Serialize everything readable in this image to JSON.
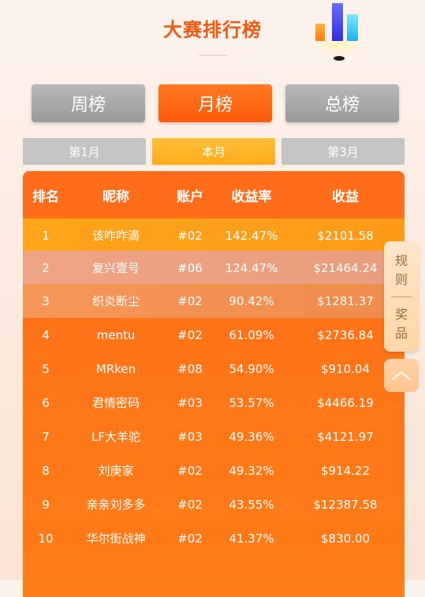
{
  "header": {
    "title": "大赛排行榜"
  },
  "tabs": [
    {
      "label": "周榜",
      "active": false
    },
    {
      "label": "月榜",
      "active": true
    },
    {
      "label": "总榜",
      "active": false
    }
  ],
  "subtabs": [
    {
      "label": "第1月",
      "active": false
    },
    {
      "label": "本月",
      "active": true
    },
    {
      "label": "第3月",
      "active": false
    }
  ],
  "table": {
    "columns": {
      "rank": "排名",
      "nickname": "昵称",
      "account": "账户",
      "rate": "收益率",
      "earnings": "收益"
    },
    "rows": [
      {
        "rank": "1",
        "nickname": "该咋咋滴",
        "account": "#02",
        "rate": "142.47%",
        "earnings": "$2101.58"
      },
      {
        "rank": "2",
        "nickname": "复兴壹号",
        "account": "#06",
        "rate": "124.47%",
        "earnings": "$21464.24"
      },
      {
        "rank": "3",
        "nickname": "织炎断尘",
        "account": "#02",
        "rate": "90.42%",
        "earnings": "$1281.37"
      },
      {
        "rank": "4",
        "nickname": "mentu",
        "account": "#02",
        "rate": "61.09%",
        "earnings": "$2736.84"
      },
      {
        "rank": "5",
        "nickname": "MRken",
        "account": "#08",
        "rate": "54.90%",
        "earnings": "$910.04"
      },
      {
        "rank": "6",
        "nickname": "君情密码",
        "account": "#03",
        "rate": "53.57%",
        "earnings": "$4466.19"
      },
      {
        "rank": "7",
        "nickname": "LF大羊驼",
        "account": "#03",
        "rate": "49.36%",
        "earnings": "$4121.97"
      },
      {
        "rank": "8",
        "nickname": "刘庚家",
        "account": "#02",
        "rate": "49.32%",
        "earnings": "$914.22"
      },
      {
        "rank": "9",
        "nickname": "亲亲刘多多",
        "account": "#02",
        "rate": "43.55%",
        "earnings": "$12387.58"
      },
      {
        "rank": "10",
        "nickname": "华尔街战神",
        "account": "#02",
        "rate": "41.37%",
        "earnings": "$830.00"
      }
    ]
  },
  "side": {
    "rules": [
      "规",
      "则"
    ],
    "prizes": [
      "奖",
      "品"
    ],
    "top_icon": "chevron-up-icon"
  },
  "colors": {
    "accent": "#ff6b1a",
    "title": "#f05a14",
    "gold": "#ffa918"
  }
}
